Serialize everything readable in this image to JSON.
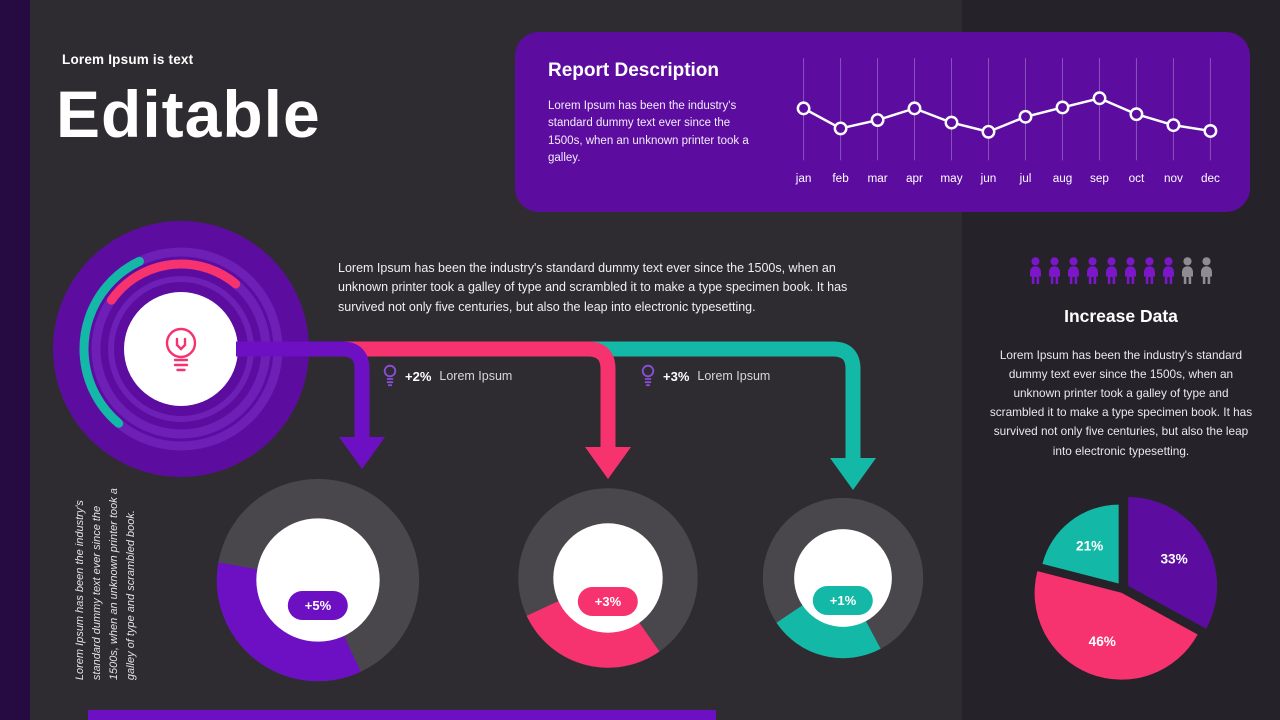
{
  "theme": {
    "bg": "#2f2c31",
    "panelbg": "#252229",
    "purple": "#5c0da0",
    "purplebright": "#6d10c4",
    "pink": "#f6326f",
    "teal": "#14b8a6",
    "ringgray": "#4a474c",
    "leftbar": "#250b41"
  },
  "header": {
    "kicker": "Lorem Ipsum is text",
    "title": "Editable"
  },
  "report": {
    "title": "Report Description",
    "body": "Lorem Ipsum has been the industry's standard dummy text ever since the 1500s, when an unknown printer took a galley."
  },
  "intro": {
    "body": "Lorem Ipsum has been the industry's standard dummy text ever since the 1500s, when an unknown printer took a galley of type and scrambled it to make a type specimen book. It has survived not only five centuries, but also the leap into electronic typesetting."
  },
  "callouts": [
    {
      "value": "+2%",
      "label": "Lorem Ipsum"
    },
    {
      "value": "+3%",
      "label": "Lorem Ipsum"
    }
  ],
  "side_note": "Lorem Ipsum has been the industry's standard dummy text ever since the 1500s, when an unknown printer took a galley of type and scrambled book.",
  "increase": {
    "title": "Increase Data",
    "body": "Lorem Ipsum has been the industry's standard dummy text ever since the 1500s, when an unknown printer took a galley of type and scrambled it to make a type specimen book. It has survived not only five centuries, but also the leap into electronic typesetting.",
    "people": {
      "highlighted": 8,
      "muted": 2,
      "highlight_color": "#7b16c9",
      "muted_color": "#8f8c92"
    }
  },
  "chart_data": [
    {
      "id": "monthly_line",
      "type": "line",
      "title": "Report Description trend",
      "x": [
        "jan",
        "feb",
        "mar",
        "apr",
        "may",
        "jun",
        "jul",
        "aug",
        "sep",
        "oct",
        "nov",
        "dec"
      ],
      "values": [
        62,
        38,
        48,
        62,
        45,
        34,
        52,
        63,
        74,
        55,
        42,
        35
      ],
      "ylim": [
        0,
        100
      ],
      "grid": "vertical",
      "line_color": "#ffffff",
      "marker": "hollow-circle",
      "legend": "none"
    },
    {
      "id": "donuts",
      "type": "donut",
      "items": [
        {
          "badge": "+5%",
          "color": "#6d10c4",
          "arc_start_deg": 65,
          "arc_sweep_deg": 125,
          "size": 212
        },
        {
          "badge": "+3%",
          "color": "#f6326f",
          "arc_start_deg": 55,
          "arc_sweep_deg": 100,
          "size": 188
        },
        {
          "badge": "+1%",
          "color": "#14b8a6",
          "arc_start_deg": 62,
          "arc_sweep_deg": 84,
          "size": 168
        }
      ]
    },
    {
      "id": "pie",
      "type": "pie",
      "slices": [
        {
          "label": "33%",
          "value": 33,
          "color": "#5c0da0",
          "radius": 88,
          "offset": 6
        },
        {
          "label": "46%",
          "value": 46,
          "color": "#f6326f",
          "radius": 86,
          "offset": 4
        },
        {
          "label": "21%",
          "value": 21,
          "color": "#14b8a6",
          "radius": 78,
          "offset": 7
        }
      ]
    }
  ]
}
